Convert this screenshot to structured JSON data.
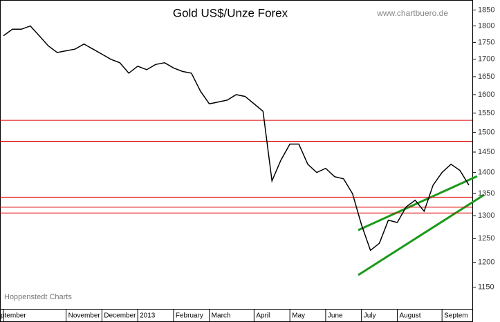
{
  "chart_data": {
    "type": "line",
    "title": "Gold US$/Unze Forex",
    "source": "www.chartbuero.de",
    "footer": "Hoppenstedt Charts",
    "categories": [
      "ptember",
      null,
      null,
      null,
      null,
      null,
      null,
      "November",
      null,
      null,
      null,
      "December",
      null,
      null,
      null,
      "2013",
      null,
      null,
      null,
      "February",
      null,
      null,
      null,
      "March",
      null,
      null,
      null,
      null,
      "April",
      null,
      null,
      null,
      "May",
      null,
      null,
      null,
      "June",
      null,
      null,
      null,
      "July",
      null,
      null,
      null,
      "August",
      null,
      null,
      null,
      null,
      "Septem",
      null,
      null,
      null
    ],
    "series": [
      {
        "name": "Gold",
        "color": "#000000",
        "values": [
          1770,
          1790,
          1790,
          1800,
          1770,
          1740,
          1720,
          1725,
          1730,
          1745,
          1730,
          1715,
          1700,
          1690,
          1660,
          1680,
          1670,
          1685,
          1690,
          1675,
          1665,
          1660,
          1610,
          1575,
          1580,
          1585,
          1600,
          1595,
          1575,
          1555,
          1380,
          1430,
          1470,
          1470,
          1420,
          1400,
          1410,
          1390,
          1385,
          1350,
          1280,
          1225,
          1240,
          1290,
          1285,
          1320,
          1335,
          1310,
          1370,
          1400,
          1420,
          1405,
          1370
        ]
      }
    ],
    "levels": [
      1531,
      1477,
      1342,
      1319,
      1306
    ],
    "level_color": "#e00000",
    "log": true,
    "ylim": [
      1108,
      1882
    ],
    "yticks": [
      1150,
      1200,
      1250,
      1300,
      1350,
      1400,
      1450,
      1500,
      1550,
      1600,
      1650,
      1700,
      1750,
      1800,
      1850
    ]
  }
}
